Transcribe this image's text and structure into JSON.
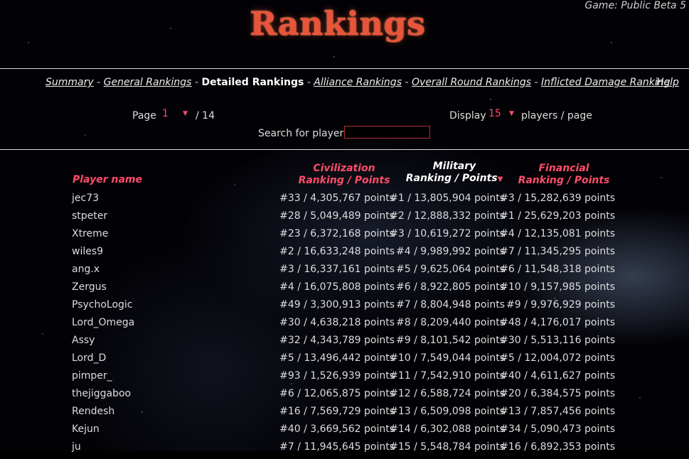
{
  "header": {
    "logo_text": "Rankings",
    "game_label": "Game: Public Beta 5"
  },
  "nav": {
    "items": [
      {
        "label": "Summary",
        "current": false
      },
      {
        "label": "General Rankings",
        "current": false
      },
      {
        "label": "Detailed Rankings",
        "current": true
      },
      {
        "label": "Alliance Rankings",
        "current": false
      },
      {
        "label": "Overall Round Rankings",
        "current": false
      },
      {
        "label": "Inflicted Damage Ranking",
        "current": false
      }
    ],
    "separator": "-",
    "help_label": "Help"
  },
  "controls": {
    "page_label": "Page",
    "page_value": "1",
    "page_total": "/ 14",
    "display_label": "Display",
    "display_value": "15",
    "display_suffix": "players / page",
    "search_label": "Search for player :",
    "search_value": ""
  },
  "table": {
    "headers": {
      "player": "Player name",
      "civ_line1": "Civilization",
      "civ_line2": "Ranking / Points",
      "mil_line1": "Military",
      "mil_line2": "Ranking / Points",
      "fin_line1": "Financial",
      "fin_line2": "Ranking / Points"
    },
    "sorted_column": "military",
    "rows": [
      {
        "name": "jec73",
        "civ": "#33 / 4,305,767 points",
        "mil": "#1 / 13,805,904 points",
        "fin": "#3 / 15,282,639 points"
      },
      {
        "name": "stpeter",
        "civ": "#28 / 5,049,489 points",
        "mil": "#2 / 12,888,332 points",
        "fin": "#1 / 25,629,203 points"
      },
      {
        "name": "Xtreme",
        "civ": "#23 / 6,372,168 points",
        "mil": "#3 / 10,619,272 points",
        "fin": "#4 / 12,135,081 points"
      },
      {
        "name": "wiles9",
        "civ": "#2 / 16,633,248 points",
        "mil": "#4 / 9,989,992 points",
        "fin": "#7 / 11,345,295 points"
      },
      {
        "name": "ang.x",
        "civ": "#3 / 16,337,161 points",
        "mil": "#5 / 9,625,064 points",
        "fin": "#6 / 11,548,318 points"
      },
      {
        "name": "Zergus",
        "civ": "#4 / 16,075,808 points",
        "mil": "#6 / 8,922,805 points",
        "fin": "#10 / 9,157,985 points"
      },
      {
        "name": "PsychoLogic",
        "civ": "#49 / 3,300,913 points",
        "mil": "#7 / 8,804,948 points",
        "fin": "#9 / 9,976,929 points"
      },
      {
        "name": "Lord_Omega",
        "civ": "#30 / 4,638,218 points",
        "mil": "#8 / 8,209,440 points",
        "fin": "#48 / 4,176,017 points"
      },
      {
        "name": "Assy",
        "civ": "#32 / 4,343,789 points",
        "mil": "#9 / 8,101,542 points",
        "fin": "#30 / 5,513,116 points"
      },
      {
        "name": "Lord_D",
        "civ": "#5 / 13,496,442 points",
        "mil": "#10 / 7,549,044 points",
        "fin": "#5 / 12,004,072 points"
      },
      {
        "name": "pimper_",
        "civ": "#93 / 1,526,939 points",
        "mil": "#11 / 7,542,910 points",
        "fin": "#40 / 4,611,627 points"
      },
      {
        "name": "thejiggaboo",
        "civ": "#6 / 12,065,875 points",
        "mil": "#12 / 6,588,724 points",
        "fin": "#20 / 6,384,575 points"
      },
      {
        "name": "Rendesh",
        "civ": "#16 / 7,569,729 points",
        "mil": "#13 / 6,509,098 points",
        "fin": "#13 / 7,857,456 points"
      },
      {
        "name": "Kejun",
        "civ": "#40 / 3,669,562 points",
        "mil": "#14 / 6,302,088 points",
        "fin": "#34 / 5,090,473 points"
      },
      {
        "name": "ju",
        "civ": "#7 / 11,945,645 points",
        "mil": "#15 / 5,548,784 points",
        "fin": "#16 / 6,892,353 points"
      }
    ]
  },
  "colors": {
    "accent_pink": "#ff4c6a",
    "logo_orange": "#e8553a",
    "background": "#000000"
  }
}
